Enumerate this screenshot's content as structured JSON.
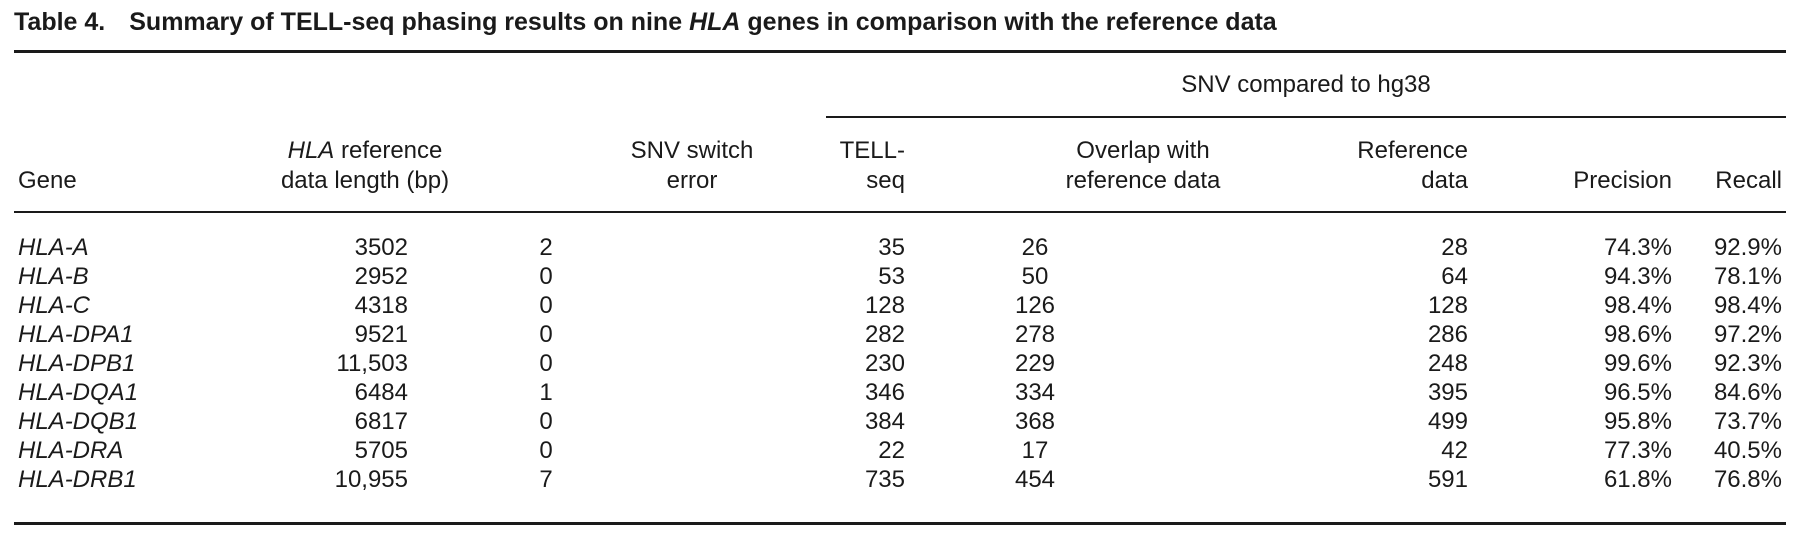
{
  "caption": {
    "label": "Table 4.",
    "text_before": "Summary of TELL-seq phasing results on nine ",
    "text_italic": "HLA",
    "text_after": " genes in comparison with the reference data"
  },
  "header": {
    "group_label": "SNV compared to hg38",
    "gene": "Gene",
    "ref_length_italic": "HLA",
    "ref_length_line1_rest": " reference",
    "ref_length_line2": "data length (bp)",
    "switch_line1": "SNV switch",
    "switch_line2": "error",
    "tell_line1": "TELL-",
    "tell_line2": "seq",
    "overlap_line1": "Overlap with",
    "overlap_line2": "reference data",
    "refdata_line1": "Reference",
    "refdata_line2": "data",
    "precision": "Precision",
    "recall": "Recall"
  },
  "rows": [
    {
      "gene": "HLA-A",
      "length": "3502",
      "switch_error": "2",
      "tell_seq": "35",
      "overlap": "26",
      "reference": "28",
      "precision": "74.3%",
      "recall": "92.9%"
    },
    {
      "gene": "HLA-B",
      "length": "2952",
      "switch_error": "0",
      "tell_seq": "53",
      "overlap": "50",
      "reference": "64",
      "precision": "94.3%",
      "recall": "78.1%"
    },
    {
      "gene": "HLA-C",
      "length": "4318",
      "switch_error": "0",
      "tell_seq": "128",
      "overlap": "126",
      "reference": "128",
      "precision": "98.4%",
      "recall": "98.4%"
    },
    {
      "gene": "HLA-DPA1",
      "length": "9521",
      "switch_error": "0",
      "tell_seq": "282",
      "overlap": "278",
      "reference": "286",
      "precision": "98.6%",
      "recall": "97.2%"
    },
    {
      "gene": "HLA-DPB1",
      "length": "11,503",
      "switch_error": "0",
      "tell_seq": "230",
      "overlap": "229",
      "reference": "248",
      "precision": "99.6%",
      "recall": "92.3%"
    },
    {
      "gene": "HLA-DQA1",
      "length": "6484",
      "switch_error": "1",
      "tell_seq": "346",
      "overlap": "334",
      "reference": "395",
      "precision": "96.5%",
      "recall": "84.6%"
    },
    {
      "gene": "HLA-DQB1",
      "length": "6817",
      "switch_error": "0",
      "tell_seq": "384",
      "overlap": "368",
      "reference": "499",
      "precision": "95.8%",
      "recall": "73.7%"
    },
    {
      "gene": "HLA-DRA",
      "length": "5705",
      "switch_error": "0",
      "tell_seq": "22",
      "overlap": "17",
      "reference": "42",
      "precision": "77.3%",
      "recall": "40.5%"
    },
    {
      "gene": "HLA-DRB1",
      "length": "10,955",
      "switch_error": "7",
      "tell_seq": "735",
      "overlap": "454",
      "reference": "591",
      "precision": "61.8%",
      "recall": "76.8%"
    }
  ]
}
